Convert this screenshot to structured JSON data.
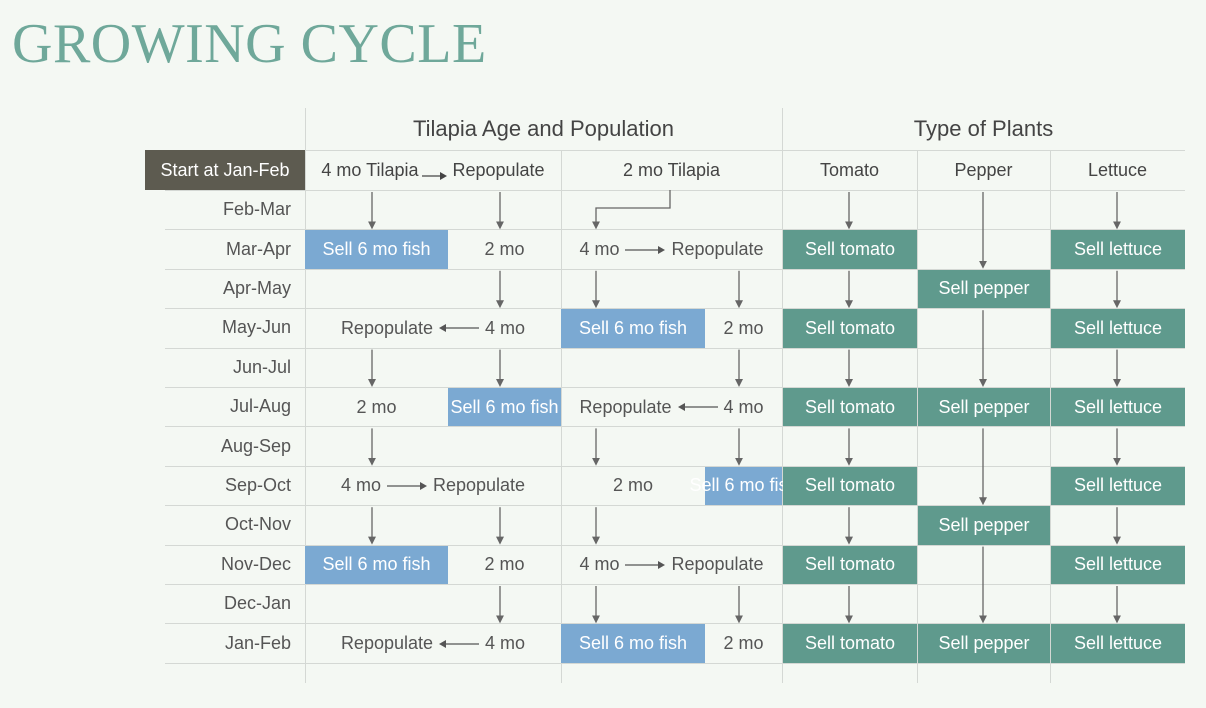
{
  "title": "GROWING CYCLE",
  "headers": {
    "group1": "Tilapia Age and Population",
    "group2": "Type of Plants"
  },
  "start_label": "Start at Jan-Feb",
  "columns": [
    "4 mo Tilapia",
    "Repopulate",
    "2 mo Tilapia",
    "Tomato",
    "Pepper",
    "Lettuce"
  ],
  "rows": [
    "Feb-Mar",
    "Mar-Apr",
    "Apr-May",
    "May-Jun",
    "Jun-Jul",
    "Jul-Aug",
    "Aug-Sep",
    "Sep-Oct",
    "Oct-Nov",
    "Nov-Dec",
    "Dec-Jan",
    "Jan-Feb"
  ],
  "labels": {
    "sell_fish": "Sell 6 mo fish",
    "two_mo": "2 mo",
    "four_mo": "4 mo",
    "repopulate": "Repopulate",
    "sell_tomato": "Sell tomato",
    "sell_pepper": "Sell pepper",
    "sell_lettuce": "Sell lettuce"
  },
  "colors": {
    "title": "#6fa89a",
    "fish": "#7ba9d2",
    "plant": "#5f9a8d",
    "start": "#5d5b50",
    "background": "#f4f8f3"
  }
}
